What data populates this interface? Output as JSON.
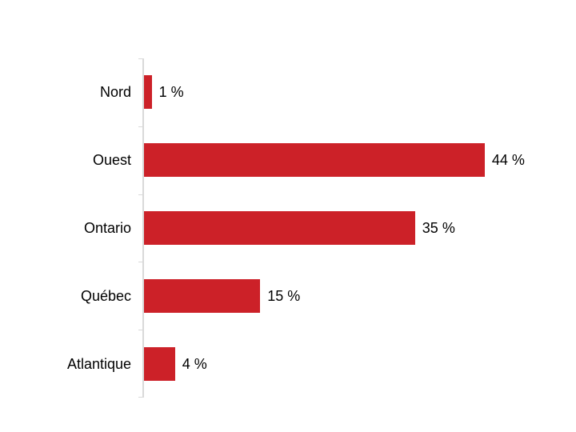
{
  "chart_data": {
    "type": "bar",
    "orientation": "horizontal",
    "categories": [
      "Nord",
      "Ouest",
      "Ontario",
      "Québec",
      "Atlantique"
    ],
    "values": [
      1,
      44,
      35,
      15,
      4
    ],
    "value_labels": [
      "1 %",
      "44 %",
      "35 %",
      "15 %",
      "4 %"
    ],
    "xlim": [
      0,
      50
    ],
    "grid": false,
    "legend": "none",
    "bar_color": "#CC2128",
    "axis_line_color": "#D9D9D9",
    "text_color": "#000000",
    "background_color": "#FFFFFF"
  }
}
